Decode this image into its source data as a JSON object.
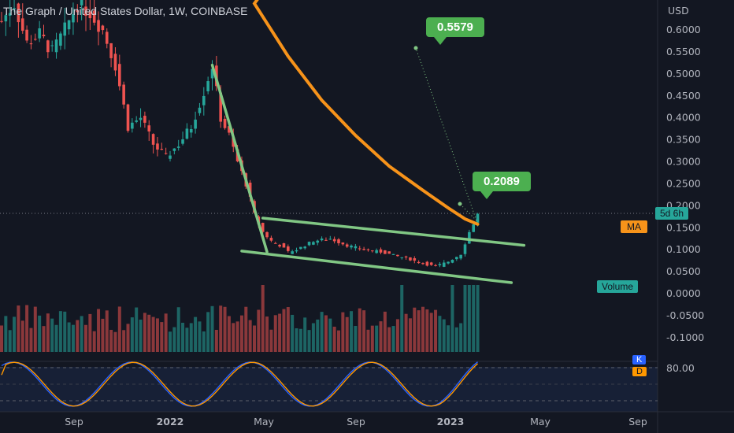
{
  "header": {
    "title": "The Graph / United States Dollar, 1W, COINBASE"
  },
  "axis": {
    "currency": "USD",
    "y_ticks": [
      "0.6000",
      "0.5500",
      "0.5000",
      "0.4500",
      "0.4000",
      "0.3500",
      "0.3000",
      "0.2500",
      "0.2000",
      "0.1500",
      "0.1000",
      "0.0500",
      "0.0000",
      "-0.0500",
      "-0.1000"
    ],
    "x_ticks": [
      "Sep",
      "2022",
      "May",
      "Sep",
      "2023",
      "May",
      "Sep"
    ],
    "osc_tick": "80.00"
  },
  "badges": {
    "countdown": "5d 6h",
    "ma": "MA",
    "volume": "Volume",
    "k": "K",
    "d": "D"
  },
  "annotations": {
    "target_high": "0.5579",
    "target_low": "0.2089"
  },
  "colors": {
    "up": "#26a69a",
    "down": "#ef5350",
    "ma": "#f7931a",
    "trend": "#81c784",
    "k": "#2962ff",
    "d": "#ff9800"
  },
  "chart_data": {
    "type": "candlestick",
    "title": "The Graph / United States Dollar, 1W, COINBASE",
    "ylabel": "USD",
    "ylim": [
      -0.13,
      0.66
    ],
    "x_ticks": [
      "Sep",
      "2022",
      "May",
      "Sep",
      "2023",
      "May",
      "Sep"
    ],
    "price_series": [
      {
        "t": 0,
        "c": 0.62
      },
      {
        "t": 3,
        "c": 0.66
      },
      {
        "t": 6,
        "c": 0.57
      },
      {
        "t": 9,
        "c": 0.59
      },
      {
        "t": 12,
        "c": 0.55
      },
      {
        "t": 15,
        "c": 0.6
      },
      {
        "t": 18,
        "c": 0.66
      },
      {
        "t": 21,
        "c": 0.64
      },
      {
        "t": 24,
        "c": 0.6
      },
      {
        "t": 27,
        "c": 0.52
      },
      {
        "t": 30,
        "c": 0.38
      },
      {
        "t": 33,
        "c": 0.4
      },
      {
        "t": 36,
        "c": 0.34
      },
      {
        "t": 39,
        "c": 0.31
      },
      {
        "t": 42,
        "c": 0.34
      },
      {
        "t": 45,
        "c": 0.38
      },
      {
        "t": 48,
        "c": 0.46
      },
      {
        "t": 50,
        "c": 0.52
      },
      {
        "t": 52,
        "c": 0.4
      },
      {
        "t": 54,
        "c": 0.36
      },
      {
        "t": 56,
        "c": 0.3
      },
      {
        "t": 58,
        "c": 0.25
      },
      {
        "t": 60,
        "c": 0.18
      },
      {
        "t": 62,
        "c": 0.14
      },
      {
        "t": 64,
        "c": 0.12
      },
      {
        "t": 66,
        "c": 0.11
      },
      {
        "t": 68,
        "c": 0.095
      },
      {
        "t": 70,
        "c": 0.1
      },
      {
        "t": 74,
        "c": 0.12
      },
      {
        "t": 78,
        "c": 0.125
      },
      {
        "t": 82,
        "c": 0.11
      },
      {
        "t": 86,
        "c": 0.1
      },
      {
        "t": 90,
        "c": 0.095
      },
      {
        "t": 94,
        "c": 0.085
      },
      {
        "t": 97,
        "c": 0.078
      },
      {
        "t": 100,
        "c": 0.068
      },
      {
        "t": 103,
        "c": 0.062
      },
      {
        "t": 106,
        "c": 0.073
      },
      {
        "t": 109,
        "c": 0.09
      },
      {
        "t": 111,
        "c": 0.14
      },
      {
        "t": 113,
        "c": 0.18
      }
    ],
    "ma_series": [
      {
        "t": 60,
        "c": 0.66
      },
      {
        "t": 68,
        "c": 0.54
      },
      {
        "t": 76,
        "c": 0.44
      },
      {
        "t": 84,
        "c": 0.36
      },
      {
        "t": 92,
        "c": 0.29
      },
      {
        "t": 100,
        "c": 0.235
      },
      {
        "t": 106,
        "c": 0.195
      },
      {
        "t": 110,
        "c": 0.17
      },
      {
        "t": 113,
        "c": 0.158
      }
    ],
    "trendlines": [
      {
        "name": "descending",
        "points": [
          [
            50,
            0.52
          ],
          [
            63,
            0.095
          ]
        ]
      },
      {
        "name": "upper_channel",
        "points": [
          [
            62,
            0.172
          ],
          [
            124,
            0.11
          ]
        ]
      },
      {
        "name": "lower_channel",
        "points": [
          [
            57,
            0.097
          ],
          [
            121,
            0.025
          ]
        ]
      }
    ],
    "annotations": [
      {
        "label": "0.5579",
        "value": 0.5579
      },
      {
        "label": "0.2089",
        "value": 0.2089
      }
    ],
    "oscillator": {
      "levels": [
        80,
        20
      ],
      "tick": "80.00"
    }
  }
}
